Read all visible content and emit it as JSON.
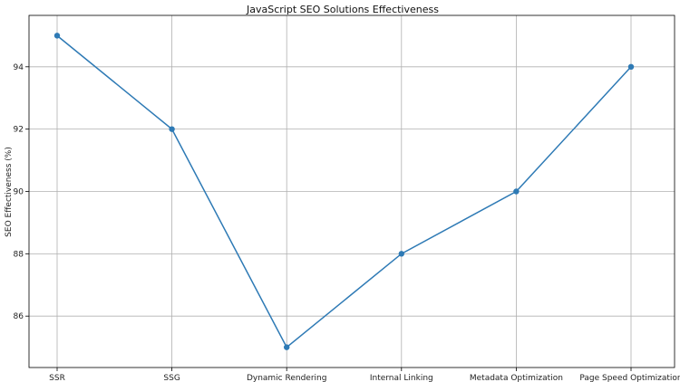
{
  "chart_data": {
    "type": "line",
    "title": "JavaScript SEO Solutions Effectiveness",
    "xlabel": "",
    "ylabel": "SEO Effectiveness (%)",
    "categories": [
      "SSR",
      "SSG",
      "Dynamic Rendering",
      "Internal Linking",
      "Metadata Optimization",
      "Page Speed Optimization"
    ],
    "series": [
      {
        "values": [
          95,
          92,
          85,
          88,
          90,
          94
        ]
      }
    ],
    "yticks": [
      86,
      88,
      90,
      92,
      94
    ],
    "ylim": [
      84.35,
      95.65
    ],
    "grid": true,
    "markers": true,
    "color": "#2e7ab5"
  }
}
